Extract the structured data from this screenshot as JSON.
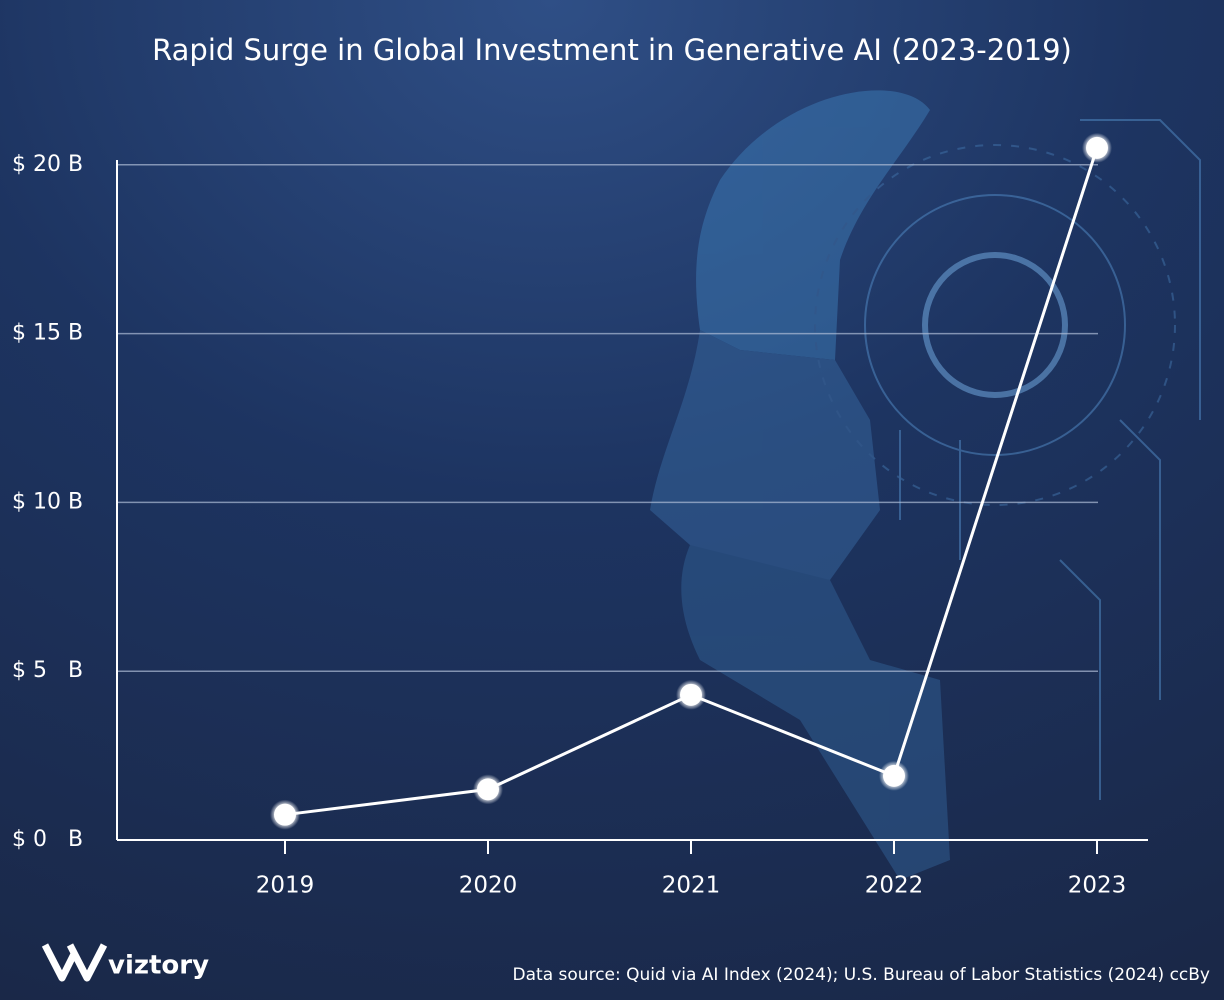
{
  "chart_data": {
    "type": "line",
    "title": "Rapid Surge in Global Investment in Generative AI (2023-2019)",
    "categories": [
      "2019",
      "2020",
      "2021",
      "2022",
      "2023"
    ],
    "values": [
      0.75,
      1.5,
      4.3,
      1.9,
      20.5
    ],
    "color": "#ffffff",
    "ylim": [
      0,
      21
    ],
    "yticks": [
      {
        "value": 0,
        "label": "$ 0   B"
      },
      {
        "value": 5,
        "label": "$ 5   B"
      },
      {
        "value": 10,
        "label": "$ 10 B"
      },
      {
        "value": 15,
        "label": "$ 15 B"
      },
      {
        "value": 20,
        "label": "$ 20 B"
      }
    ],
    "grid": true,
    "source": "Data source: Quid via AI Index (2024); U.S. Bureau of Labor Statistics (2024) ccBy",
    "logo": "viztory"
  }
}
